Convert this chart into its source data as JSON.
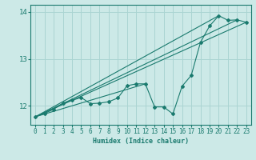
{
  "xlabel": "Humidex (Indice chaleur)",
  "xlim": [
    -0.5,
    23.5
  ],
  "ylim": [
    11.6,
    14.15
  ],
  "yticks": [
    12,
    13,
    14
  ],
  "xticks": [
    0,
    1,
    2,
    3,
    4,
    5,
    6,
    7,
    8,
    9,
    10,
    11,
    12,
    13,
    14,
    15,
    16,
    17,
    18,
    19,
    20,
    21,
    22,
    23
  ],
  "bg_color": "#cce9e7",
  "grid_color": "#aad4d2",
  "line_color": "#1a7a6e",
  "series": {
    "main_line": [
      11.77,
      11.84,
      11.93,
      12.06,
      12.12,
      12.18,
      12.05,
      12.06,
      12.09,
      12.17,
      12.43,
      12.47,
      12.47,
      11.98,
      11.98,
      11.83,
      12.42,
      12.65,
      13.35,
      13.7,
      13.92,
      13.82,
      13.83,
      13.78
    ],
    "trend1_x": [
      0,
      23
    ],
    "trend1_y": [
      11.77,
      13.78
    ],
    "trend2_x": [
      0,
      20
    ],
    "trend2_y": [
      11.77,
      13.92
    ],
    "trend3_x": [
      0,
      12
    ],
    "trend3_y": [
      11.77,
      12.47
    ],
    "trend4_x": [
      0,
      22
    ],
    "trend4_y": [
      11.77,
      13.83
    ]
  }
}
